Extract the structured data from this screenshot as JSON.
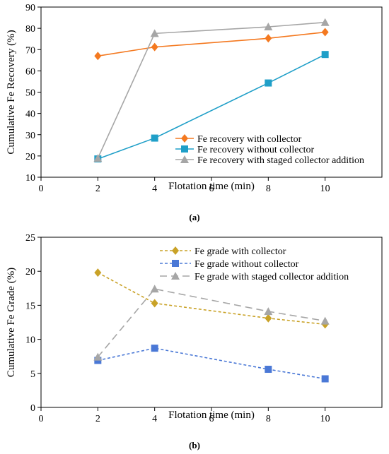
{
  "chart_data": [
    {
      "type": "line",
      "panel_label": "(a)",
      "xlabel": "Flotation time (min)",
      "ylabel": "Cumulative Fe Recovery (%)",
      "xlim": [
        0,
        12
      ],
      "ylim": [
        10,
        90
      ],
      "xticks": [
        0,
        2,
        4,
        6,
        8,
        10
      ],
      "yticks": [
        10,
        20,
        30,
        40,
        50,
        60,
        70,
        80,
        90
      ],
      "grid": false,
      "legend_position": "bottom-right",
      "series": [
        {
          "name": "Fe recovery with collector",
          "color": "#f47920",
          "marker": "diamond",
          "dash": "solid",
          "x": [
            2,
            4,
            8,
            10
          ],
          "y": [
            67.0,
            71.2,
            75.3,
            78.2
          ]
        },
        {
          "name": "Fe recovery without collector",
          "color": "#1f9fc8",
          "marker": "square",
          "dash": "solid",
          "x": [
            2,
            4,
            8,
            10
          ],
          "y": [
            18.6,
            28.4,
            54.3,
            67.7
          ]
        },
        {
          "name": "Fe recovery with staged collector addition",
          "color": "#a6a6a6",
          "marker": "triangle",
          "dash": "solid",
          "x": [
            2,
            4,
            8,
            10
          ],
          "y": [
            18.9,
            77.6,
            80.7,
            82.8
          ]
        }
      ]
    },
    {
      "type": "line",
      "panel_label": "(b)",
      "xlabel": "Flotation time (min)",
      "ylabel": "Cumulative Fe Grade (%)",
      "xlim": [
        0,
        12
      ],
      "ylim": [
        0,
        25
      ],
      "xticks": [
        0,
        2,
        4,
        6,
        8,
        10
      ],
      "yticks": [
        0,
        5,
        10,
        15,
        20,
        25
      ],
      "grid": false,
      "legend_position": "top-right",
      "series": [
        {
          "name": "Fe grade with collector",
          "color": "#c9a227",
          "marker": "diamond",
          "dash": "short",
          "x": [
            2,
            4,
            8,
            10
          ],
          "y": [
            19.8,
            15.3,
            13.1,
            12.2
          ]
        },
        {
          "name": "Fe grade without collector",
          "color": "#4a78d6",
          "marker": "square",
          "dash": "short",
          "x": [
            2,
            4,
            8,
            10
          ],
          "y": [
            6.9,
            8.7,
            5.6,
            4.2
          ]
        },
        {
          "name": "Fe grade with staged collector addition",
          "color": "#a6a6a6",
          "marker": "triangle",
          "dash": "long",
          "x": [
            2,
            4,
            8,
            10
          ],
          "y": [
            7.4,
            17.4,
            14.1,
            12.7
          ]
        }
      ]
    }
  ]
}
